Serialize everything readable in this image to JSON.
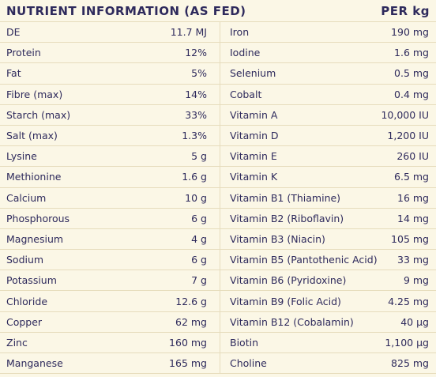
{
  "header": {
    "title": "NUTRIENT INFORMATION (AS FED)",
    "unit": "PER kg"
  },
  "table": {
    "rows": [
      [
        "DE",
        "11.7 MJ",
        "Iron",
        "190 mg"
      ],
      [
        "Protein",
        "12%",
        "Iodine",
        "1.6 mg"
      ],
      [
        "Fat",
        "5%",
        "Selenium",
        "0.5 mg"
      ],
      [
        "Fibre (max)",
        "14%",
        "Cobalt",
        "0.4 mg"
      ],
      [
        "Starch (max)",
        "33%",
        "Vitamin A",
        "10,000 IU"
      ],
      [
        "Salt (max)",
        "1.3%",
        "Vitamin D",
        "1,200 IU"
      ],
      [
        "Lysine",
        "5 g",
        "Vitamin E",
        "260 IU"
      ],
      [
        "Methionine",
        "1.6 g",
        "Vitamin K",
        "6.5 mg"
      ],
      [
        "Calcium",
        "10 g",
        "Vitamin B1 (Thiamine)",
        "16 mg"
      ],
      [
        "Phosphorous",
        "6 g",
        "Vitamin B2 (Riboflavin)",
        "14 mg"
      ],
      [
        "Magnesium",
        "4 g",
        "Vitamin B3 (Niacin)",
        "105 mg"
      ],
      [
        "Sodium",
        "6 g",
        "Vitamin B5 (Pantothenic Acid)",
        "33 mg"
      ],
      [
        "Potassium",
        "7 g",
        "Vitamin B6 (Pyridoxine)",
        "9 mg"
      ],
      [
        "Chloride",
        "12.6 g",
        "Vitamin B9 (Folic Acid)",
        "4.25 mg"
      ],
      [
        "Copper",
        "62 mg",
        "Vitamin B12 (Cobalamin)",
        "40 µg"
      ],
      [
        "Zinc",
        "160 mg",
        "Biotin",
        "1,100 µg"
      ],
      [
        "Manganese",
        "165 mg",
        "Choline",
        "825 mg"
      ]
    ]
  }
}
